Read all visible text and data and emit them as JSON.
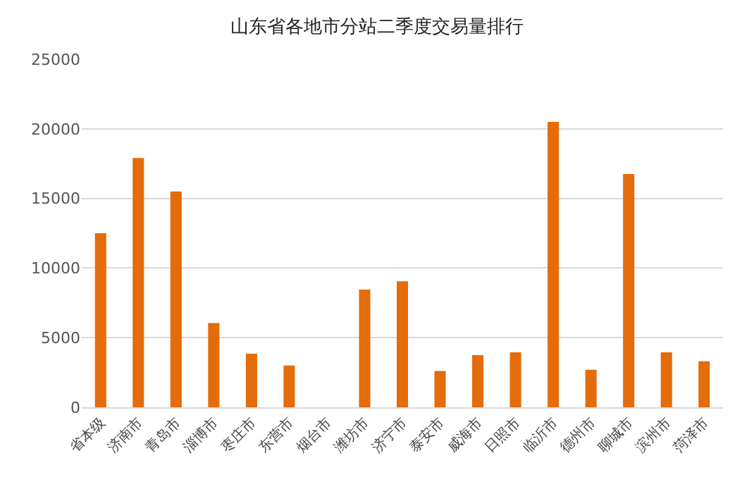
{
  "chart_data": {
    "type": "bar",
    "title": "山东省各地市分站二季度交易量排行",
    "categories": [
      "省本级",
      "济南市",
      "青岛市",
      "淄博市",
      "枣庄市",
      "东营市",
      "烟台市",
      "潍坊市",
      "济宁市",
      "泰安市",
      "威海市",
      "日照市",
      "临沂市",
      "德州市",
      "聊城市",
      "滨州市",
      "菏泽市"
    ],
    "values": [
      12500,
      17900,
      15500,
      6050,
      3850,
      3000,
      0,
      8450,
      9050,
      2600,
      3750,
      3950,
      20500,
      2700,
      16750,
      3950,
      3300
    ],
    "color": "#e46c0a",
    "ylim": [
      0,
      25000
    ],
    "yticks": [
      0,
      5000,
      10000,
      15000,
      20000,
      25000
    ],
    "grid": "y",
    "legend": false
  }
}
